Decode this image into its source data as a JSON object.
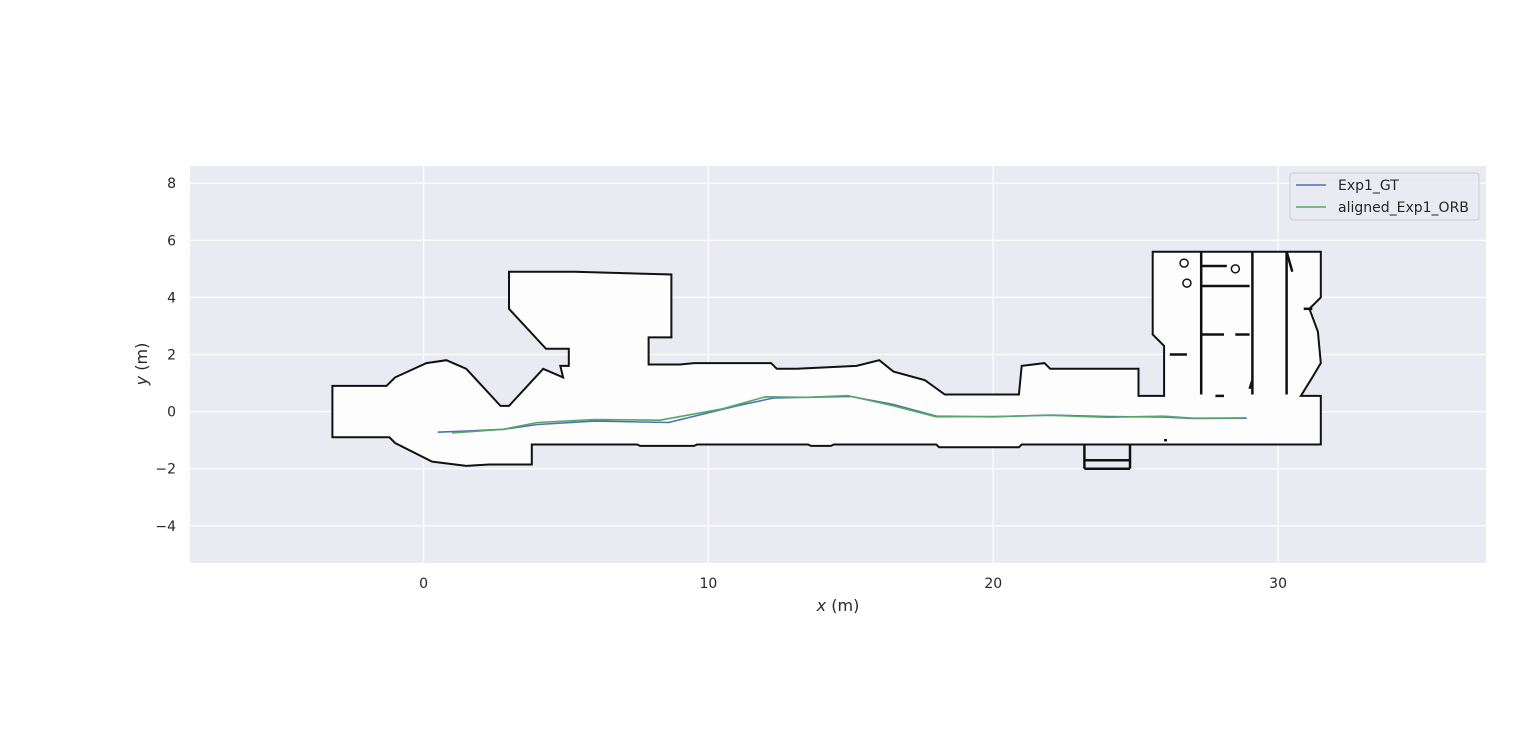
{
  "chart_data": {
    "type": "line",
    "title": "",
    "xlabel": "x",
    "xlabel_unit": "(m)",
    "ylabel": "y",
    "ylabel_unit": "(m)",
    "xlim": [
      -8.2,
      37.3
    ],
    "ylim": [
      -5.3,
      8.6
    ],
    "x_ticks": [
      0,
      10,
      20,
      30
    ],
    "y_ticks": [
      -4,
      -2,
      0,
      2,
      4,
      6,
      8
    ],
    "grid": true,
    "legend_position": "top-right",
    "background_map": "occupancy-grid",
    "series": [
      {
        "name": "Exp1_GT",
        "color": "#4c72b0",
        "x": [
          0.5,
          1.5,
          2.8,
          4.0,
          6.0,
          8.6,
          11.0,
          12.3,
          15.0,
          16.5,
          18.0,
          20.0,
          22.0,
          24.0,
          26.0,
          27.0,
          28.9
        ],
        "y": [
          -0.72,
          -0.68,
          -0.62,
          -0.45,
          -0.33,
          -0.38,
          0.2,
          0.48,
          0.53,
          0.25,
          -0.16,
          -0.18,
          -0.12,
          -0.17,
          -0.19,
          -0.24,
          -0.23
        ]
      },
      {
        "name": "aligned_Exp1_ORB",
        "color": "#55a868",
        "x": [
          1.0,
          2.8,
          4.0,
          6.0,
          8.3,
          10.5,
          12.0,
          13.5,
          14.9,
          16.5,
          18.0,
          20.0,
          22.0,
          24.0,
          26.0,
          27.0,
          28.8
        ],
        "y": [
          -0.75,
          -0.62,
          -0.38,
          -0.28,
          -0.3,
          0.1,
          0.52,
          0.5,
          0.56,
          0.2,
          -0.18,
          -0.17,
          -0.13,
          -0.2,
          -0.16,
          -0.23,
          -0.22
        ]
      }
    ]
  },
  "map_style": {
    "free_space_color": "#fdfdfd",
    "wall_color": "#111111"
  }
}
